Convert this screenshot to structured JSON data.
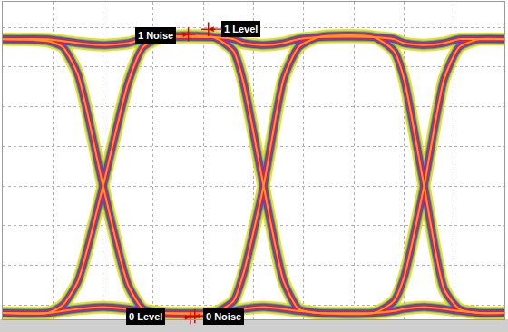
{
  "chart_data": {
    "type": "line",
    "x": [
      0,
      0.9,
      1.2,
      1.5,
      2.0,
      2.5,
      2.8,
      3.2,
      4.2,
      4.6,
      4.8,
      5.2,
      5.6,
      5.9,
      6.3,
      7.4,
      7.8,
      8.0,
      8.4,
      8.8,
      9.1,
      9.5,
      10
    ],
    "series": [
      {
        "color": "#ff9a1a",
        "values": [
          3.7,
          3.65,
          3.5,
          2.8,
          0,
          -2.5,
          -3.1,
          -3.2,
          -3.2,
          -2.9,
          -2.2,
          0,
          2.7,
          3.5,
          3.75,
          3.75,
          3.4,
          2.7,
          0,
          -2.6,
          -3.1,
          -3.2,
          -3.2
        ]
      },
      {
        "color": "#ff9a1a",
        "values": [
          -3.2,
          -3.2,
          -3.0,
          -2.4,
          0,
          2.6,
          3.5,
          3.75,
          3.75,
          3.4,
          2.6,
          0,
          -2.4,
          -3.1,
          -3.2,
          -3.2,
          -2.9,
          -2.3,
          0,
          2.7,
          3.5,
          3.7,
          3.7
        ]
      },
      {
        "color": "#ff9a1a",
        "values": [
          3.7,
          3.7,
          3.65,
          3.6,
          3.55,
          3.6,
          3.7,
          3.75,
          3.75,
          3.7,
          3.6,
          3.55,
          3.6,
          3.7,
          3.75,
          3.75,
          3.7,
          3.6,
          3.55,
          3.6,
          3.7,
          3.7,
          3.7
        ]
      },
      {
        "color": "#ff9a1a",
        "values": [
          -3.2,
          -3.2,
          -3.15,
          -3.1,
          -3.05,
          -3.1,
          -3.15,
          -3.2,
          -3.2,
          -3.15,
          -3.1,
          -3.05,
          -3.1,
          -3.15,
          -3.2,
          -3.2,
          -3.15,
          -3.1,
          -3.05,
          -3.1,
          -3.15,
          -3.2,
          -3.2
        ]
      }
    ],
    "xlim": [
      0,
      10
    ],
    "xticks": [
      0,
      1,
      2,
      3,
      4,
      5,
      6,
      7,
      8,
      9,
      10
    ],
    "ylim": [
      -3.36,
      4.64
    ],
    "yticks": [
      -3,
      -2,
      -1,
      0,
      1,
      2,
      3,
      4
    ],
    "grid": true,
    "tick_labels": false,
    "marker": "cross",
    "annotations": [
      {
        "text": "1 Noise",
        "x": 3.7,
        "y": 3.82,
        "text_x": 3.05,
        "text_y": 3.8
      },
      {
        "text": "1 Level",
        "x": 4.1,
        "y": 3.95,
        "text_x": 4.75,
        "text_y": 3.95
      },
      {
        "text": "0 Level",
        "x": 3.74,
        "y": -3.31,
        "text_x": 2.85,
        "text_y": -3.3
      },
      {
        "text": "0 Noise",
        "x": 3.83,
        "y": -3.28,
        "text_x": 4.4,
        "text_y": -3.28
      }
    ]
  }
}
